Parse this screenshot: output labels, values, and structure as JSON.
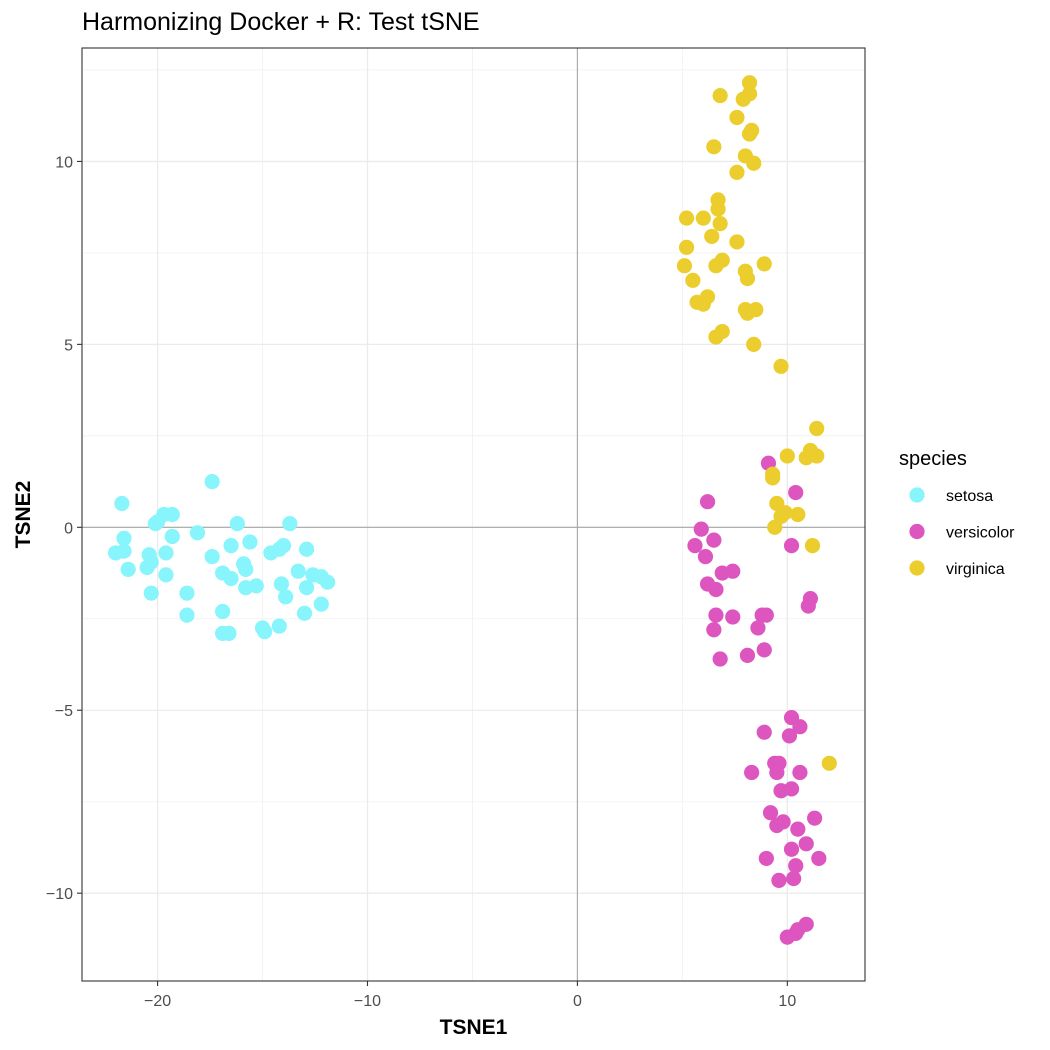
{
  "chart_data": {
    "type": "scatter",
    "title": "Harmonizing Docker + R: Test tSNE",
    "xlabel": "TSNE1",
    "ylabel": "TSNE2",
    "xlim": [
      -23.6,
      13.7
    ],
    "ylim": [
      -12.4,
      13.1
    ],
    "x_ticks": [
      -20,
      -10,
      0,
      10
    ],
    "x_tick_labels": [
      "−20",
      "−10",
      "0",
      "10"
    ],
    "y_ticks": [
      -10,
      -5,
      0,
      5,
      10
    ],
    "y_tick_labels": [
      "−10",
      "−5",
      "0",
      "5",
      "10"
    ],
    "grid": true,
    "reference_lines": {
      "x": 0,
      "y": 0
    },
    "legend": {
      "title": "species",
      "position": "right"
    },
    "series": [
      {
        "name": "setosa",
        "color": "#87F5FB",
        "points": [
          [
            -21.7,
            0.65
          ],
          [
            -20.1,
            0.1
          ],
          [
            -19.7,
            0.35
          ],
          [
            -19.3,
            0.35
          ],
          [
            -20.0,
            0.15
          ],
          [
            -17.4,
            1.25
          ],
          [
            -18.1,
            -0.15
          ],
          [
            -21.6,
            -0.3
          ],
          [
            -22.0,
            -0.7
          ],
          [
            -21.6,
            -0.65
          ],
          [
            -20.4,
            -0.75
          ],
          [
            -20.3,
            -0.95
          ],
          [
            -20.5,
            -1.1
          ],
          [
            -21.4,
            -1.15
          ],
          [
            -19.6,
            -0.7
          ],
          [
            -19.3,
            -0.25
          ],
          [
            -19.6,
            -1.3
          ],
          [
            -20.3,
            -1.8
          ],
          [
            -18.6,
            -1.8
          ],
          [
            -18.6,
            -2.4
          ],
          [
            -17.4,
            -0.8
          ],
          [
            -16.9,
            -1.25
          ],
          [
            -16.5,
            -0.5
          ],
          [
            -16.5,
            -1.4
          ],
          [
            -16.2,
            0.1
          ],
          [
            -15.9,
            -1.0
          ],
          [
            -15.8,
            -1.15
          ],
          [
            -15.6,
            -0.4
          ],
          [
            -15.3,
            -1.6
          ],
          [
            -15.8,
            -1.65
          ],
          [
            -16.9,
            -2.3
          ],
          [
            -16.9,
            -2.9
          ],
          [
            -16.6,
            -2.9
          ],
          [
            -15.0,
            -2.75
          ],
          [
            -14.9,
            -2.85
          ],
          [
            -14.6,
            -0.7
          ],
          [
            -14.2,
            -0.6
          ],
          [
            -14.0,
            -0.5
          ],
          [
            -14.1,
            -1.55
          ],
          [
            -13.9,
            -1.9
          ],
          [
            -14.2,
            -2.7
          ],
          [
            -13.7,
            0.1
          ],
          [
            -13.3,
            -1.2
          ],
          [
            -12.9,
            -0.6
          ],
          [
            -12.9,
            -1.65
          ],
          [
            -13.0,
            -2.35
          ],
          [
            -12.6,
            -1.3
          ],
          [
            -12.2,
            -1.35
          ],
          [
            -12.2,
            -2.1
          ],
          [
            -11.9,
            -1.5
          ]
        ]
      },
      {
        "name": "versicolor",
        "color": "#DD55BF",
        "points": [
          [
            9.1,
            1.75
          ],
          [
            10.4,
            0.95
          ],
          [
            6.2,
            0.7
          ],
          [
            5.9,
            -0.05
          ],
          [
            6.5,
            -0.35
          ],
          [
            5.6,
            -0.5
          ],
          [
            6.1,
            -0.8
          ],
          [
            10.2,
            -0.5
          ],
          [
            6.2,
            -1.55
          ],
          [
            6.6,
            -1.7
          ],
          [
            6.9,
            -1.25
          ],
          [
            7.4,
            -1.2
          ],
          [
            6.6,
            -2.4
          ],
          [
            6.5,
            -2.8
          ],
          [
            7.4,
            -2.45
          ],
          [
            8.8,
            -2.4
          ],
          [
            9.0,
            -2.4
          ],
          [
            8.6,
            -2.75
          ],
          [
            11.1,
            -1.95
          ],
          [
            11.0,
            -2.15
          ],
          [
            6.8,
            -3.6
          ],
          [
            8.1,
            -3.5
          ],
          [
            8.9,
            -3.35
          ],
          [
            10.2,
            -5.2
          ],
          [
            10.6,
            -5.45
          ],
          [
            8.9,
            -5.6
          ],
          [
            10.1,
            -5.7
          ],
          [
            9.4,
            -6.45
          ],
          [
            9.6,
            -6.45
          ],
          [
            9.5,
            -6.7
          ],
          [
            8.3,
            -6.7
          ],
          [
            10.6,
            -6.7
          ],
          [
            9.7,
            -7.2
          ],
          [
            10.2,
            -7.15
          ],
          [
            9.2,
            -7.8
          ],
          [
            9.5,
            -8.15
          ],
          [
            9.8,
            -8.05
          ],
          [
            10.5,
            -8.25
          ],
          [
            11.3,
            -7.95
          ],
          [
            10.2,
            -8.8
          ],
          [
            10.9,
            -8.65
          ],
          [
            9.0,
            -9.05
          ],
          [
            10.4,
            -9.25
          ],
          [
            11.5,
            -9.05
          ],
          [
            9.6,
            -9.65
          ],
          [
            10.3,
            -9.6
          ],
          [
            10.0,
            -11.2
          ],
          [
            10.4,
            -11.1
          ],
          [
            10.5,
            -11.0
          ],
          [
            10.9,
            -10.85
          ]
        ]
      },
      {
        "name": "virginica",
        "color": "#EBCE2E",
        "points": [
          [
            8.2,
            12.15
          ],
          [
            6.8,
            11.8
          ],
          [
            7.9,
            11.7
          ],
          [
            8.2,
            11.85
          ],
          [
            7.6,
            11.2
          ],
          [
            8.2,
            10.75
          ],
          [
            8.3,
            10.85
          ],
          [
            6.5,
            10.4
          ],
          [
            8.0,
            10.15
          ],
          [
            8.4,
            9.95
          ],
          [
            7.6,
            9.7
          ],
          [
            6.7,
            8.95
          ],
          [
            6.7,
            8.7
          ],
          [
            5.2,
            8.45
          ],
          [
            6.0,
            8.45
          ],
          [
            6.8,
            8.3
          ],
          [
            6.4,
            7.95
          ],
          [
            7.6,
            7.8
          ],
          [
            5.2,
            7.65
          ],
          [
            6.9,
            7.3
          ],
          [
            6.6,
            7.15
          ],
          [
            5.1,
            7.15
          ],
          [
            8.9,
            7.2
          ],
          [
            8.0,
            7.0
          ],
          [
            8.1,
            6.8
          ],
          [
            5.5,
            6.75
          ],
          [
            6.2,
            6.3
          ],
          [
            6.0,
            6.1
          ],
          [
            8.5,
            5.95
          ],
          [
            8.0,
            5.95
          ],
          [
            8.1,
            5.85
          ],
          [
            6.9,
            5.35
          ],
          [
            6.6,
            5.2
          ],
          [
            8.4,
            5.0
          ],
          [
            9.7,
            4.4
          ],
          [
            11.4,
            2.7
          ],
          [
            11.1,
            2.1
          ],
          [
            11.4,
            1.95
          ],
          [
            10.0,
            1.95
          ],
          [
            10.9,
            1.9
          ],
          [
            9.3,
            1.45
          ],
          [
            9.3,
            1.35
          ],
          [
            9.5,
            0.65
          ],
          [
            9.9,
            0.4
          ],
          [
            10.5,
            0.35
          ],
          [
            9.4,
            0.0
          ],
          [
            11.2,
            -0.5
          ],
          [
            12.0,
            -6.45
          ],
          [
            9.7,
            0.3
          ],
          [
            5.7,
            6.15
          ]
        ]
      }
    ]
  }
}
